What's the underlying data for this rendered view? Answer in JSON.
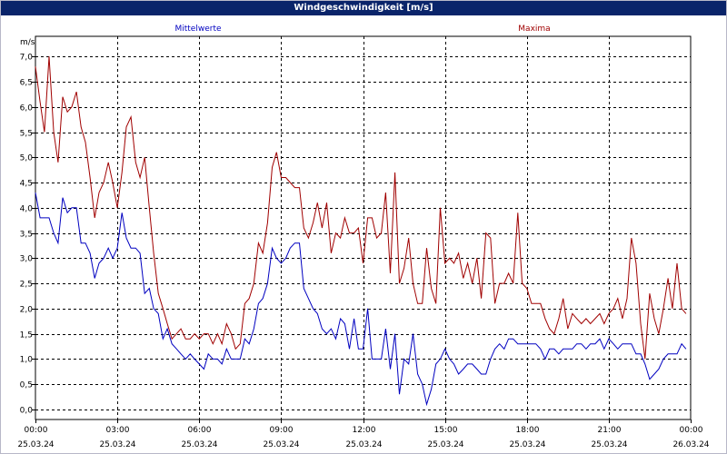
{
  "window": {
    "title": "Windgeschwindigkeit [m/s]"
  },
  "chart_data": {
    "type": "line",
    "title": "Windgeschwindigkeit [m/s]",
    "ylabel": "m/s",
    "xlabel": "",
    "ylim": [
      -0.2,
      7.4
    ],
    "xlim": [
      0,
      24
    ],
    "grid": true,
    "yticks": [
      {
        "value": 0.0,
        "label": "0,0"
      },
      {
        "value": 0.5,
        "label": "0,5"
      },
      {
        "value": 1.0,
        "label": "1,0"
      },
      {
        "value": 1.5,
        "label": "1,5"
      },
      {
        "value": 2.0,
        "label": "2,0"
      },
      {
        "value": 2.5,
        "label": "2,5"
      },
      {
        "value": 3.0,
        "label": "3,0"
      },
      {
        "value": 3.5,
        "label": "3,5"
      },
      {
        "value": 4.0,
        "label": "4,0"
      },
      {
        "value": 4.5,
        "label": "4,5"
      },
      {
        "value": 5.0,
        "label": "5,0"
      },
      {
        "value": 5.5,
        "label": "5,5"
      },
      {
        "value": 6.0,
        "label": "6,0"
      },
      {
        "value": 6.5,
        "label": "6,5"
      },
      {
        "value": 7.0,
        "label": "7,0"
      }
    ],
    "xticks": [
      {
        "value": 0,
        "time": "00:00",
        "date": "25.03.24"
      },
      {
        "value": 3,
        "time": "03:00",
        "date": "25.03.24"
      },
      {
        "value": 6,
        "time": "06:00",
        "date": "25.03.24"
      },
      {
        "value": 9,
        "time": "09:00",
        "date": "25.03.24"
      },
      {
        "value": 12,
        "time": "12:00",
        "date": "25.03.24"
      },
      {
        "value": 15,
        "time": "15:00",
        "date": "25.03.24"
      },
      {
        "value": 18,
        "time": "18:00",
        "date": "25.03.24"
      },
      {
        "value": 21,
        "time": "21:00",
        "date": "25.03.24"
      },
      {
        "value": 24,
        "time": "00:00",
        "date": "26.03.24"
      }
    ],
    "series": [
      {
        "name": "Mittelwerte",
        "color": "#0000c0",
        "points": [
          [
            0.0,
            4.3
          ],
          [
            0.17,
            3.8
          ],
          [
            0.33,
            3.8
          ],
          [
            0.5,
            3.8
          ],
          [
            0.67,
            3.5
          ],
          [
            0.83,
            3.3
          ],
          [
            1.0,
            4.2
          ],
          [
            1.17,
            3.9
          ],
          [
            1.33,
            4.0
          ],
          [
            1.5,
            4.0
          ],
          [
            1.67,
            3.3
          ],
          [
            1.83,
            3.3
          ],
          [
            2.0,
            3.1
          ],
          [
            2.17,
            2.6
          ],
          [
            2.33,
            2.9
          ],
          [
            2.5,
            3.0
          ],
          [
            2.67,
            3.2
          ],
          [
            2.83,
            3.0
          ],
          [
            3.0,
            3.2
          ],
          [
            3.17,
            3.9
          ],
          [
            3.33,
            3.4
          ],
          [
            3.5,
            3.2
          ],
          [
            3.67,
            3.2
          ],
          [
            3.83,
            3.1
          ],
          [
            4.0,
            2.3
          ],
          [
            4.17,
            2.4
          ],
          [
            4.33,
            2.0
          ],
          [
            4.5,
            1.9
          ],
          [
            4.67,
            1.4
          ],
          [
            4.83,
            1.6
          ],
          [
            5.0,
            1.3
          ],
          [
            5.17,
            1.2
          ],
          [
            5.33,
            1.1
          ],
          [
            5.5,
            1.0
          ],
          [
            5.67,
            1.1
          ],
          [
            5.83,
            1.0
          ],
          [
            6.0,
            0.9
          ],
          [
            6.17,
            0.8
          ],
          [
            6.33,
            1.1
          ],
          [
            6.5,
            1.0
          ],
          [
            6.67,
            1.0
          ],
          [
            6.83,
            0.9
          ],
          [
            7.0,
            1.2
          ],
          [
            7.17,
            1.0
          ],
          [
            7.33,
            1.0
          ],
          [
            7.5,
            1.0
          ],
          [
            7.67,
            1.4
          ],
          [
            7.83,
            1.3
          ],
          [
            8.0,
            1.6
          ],
          [
            8.17,
            2.1
          ],
          [
            8.33,
            2.2
          ],
          [
            8.5,
            2.5
          ],
          [
            8.67,
            3.2
          ],
          [
            8.83,
            3.0
          ],
          [
            9.0,
            2.9
          ],
          [
            9.17,
            3.0
          ],
          [
            9.33,
            3.2
          ],
          [
            9.5,
            3.3
          ],
          [
            9.67,
            3.3
          ],
          [
            9.83,
            2.4
          ],
          [
            10.0,
            2.2
          ],
          [
            10.17,
            2.0
          ],
          [
            10.33,
            1.9
          ],
          [
            10.5,
            1.6
          ],
          [
            10.67,
            1.5
          ],
          [
            10.83,
            1.6
          ],
          [
            11.0,
            1.4
          ],
          [
            11.17,
            1.8
          ],
          [
            11.33,
            1.7
          ],
          [
            11.5,
            1.2
          ],
          [
            11.67,
            1.8
          ],
          [
            11.83,
            1.2
          ],
          [
            12.0,
            1.2
          ],
          [
            12.17,
            2.0
          ],
          [
            12.33,
            1.0
          ],
          [
            12.5,
            1.0
          ],
          [
            12.67,
            1.0
          ],
          [
            12.83,
            1.6
          ],
          [
            13.0,
            0.8
          ],
          [
            13.17,
            1.5
          ],
          [
            13.33,
            0.3
          ],
          [
            13.5,
            1.0
          ],
          [
            13.67,
            0.9
          ],
          [
            13.83,
            1.5
          ],
          [
            14.0,
            0.7
          ],
          [
            14.17,
            0.5
          ],
          [
            14.33,
            0.1
          ],
          [
            14.5,
            0.4
          ],
          [
            14.67,
            0.9
          ],
          [
            14.83,
            1.0
          ],
          [
            15.0,
            1.2
          ],
          [
            15.17,
            1.0
          ],
          [
            15.33,
            0.9
          ],
          [
            15.5,
            0.7
          ],
          [
            15.67,
            0.8
          ],
          [
            15.83,
            0.9
          ],
          [
            16.0,
            0.9
          ],
          [
            16.17,
            0.8
          ],
          [
            16.33,
            0.7
          ],
          [
            16.5,
            0.7
          ],
          [
            16.67,
            1.0
          ],
          [
            16.83,
            1.2
          ],
          [
            17.0,
            1.3
          ],
          [
            17.17,
            1.2
          ],
          [
            17.33,
            1.4
          ],
          [
            17.5,
            1.4
          ],
          [
            17.67,
            1.3
          ],
          [
            17.83,
            1.3
          ],
          [
            18.0,
            1.3
          ],
          [
            18.17,
            1.3
          ],
          [
            18.33,
            1.3
          ],
          [
            18.5,
            1.2
          ],
          [
            18.67,
            1.0
          ],
          [
            18.83,
            1.2
          ],
          [
            19.0,
            1.2
          ],
          [
            19.17,
            1.1
          ],
          [
            19.33,
            1.2
          ],
          [
            19.5,
            1.2
          ],
          [
            19.67,
            1.2
          ],
          [
            19.83,
            1.3
          ],
          [
            20.0,
            1.3
          ],
          [
            20.17,
            1.2
          ],
          [
            20.33,
            1.3
          ],
          [
            20.5,
            1.3
          ],
          [
            20.67,
            1.4
          ],
          [
            20.83,
            1.2
          ],
          [
            21.0,
            1.4
          ],
          [
            21.17,
            1.3
          ],
          [
            21.33,
            1.2
          ],
          [
            21.5,
            1.3
          ],
          [
            21.67,
            1.3
          ],
          [
            21.83,
            1.3
          ],
          [
            22.0,
            1.1
          ],
          [
            22.17,
            1.1
          ],
          [
            22.33,
            0.9
          ],
          [
            22.5,
            0.6
          ],
          [
            22.67,
            0.7
          ],
          [
            22.83,
            0.8
          ],
          [
            23.0,
            1.0
          ],
          [
            23.17,
            1.1
          ],
          [
            23.33,
            1.1
          ],
          [
            23.5,
            1.1
          ],
          [
            23.67,
            1.3
          ],
          [
            23.83,
            1.2
          ]
        ]
      },
      {
        "name": "Maxima",
        "color": "#a00000",
        "points": [
          [
            0.0,
            6.8
          ],
          [
            0.17,
            6.1
          ],
          [
            0.33,
            5.5
          ],
          [
            0.5,
            7.0
          ],
          [
            0.67,
            5.5
          ],
          [
            0.83,
            4.9
          ],
          [
            1.0,
            6.2
          ],
          [
            1.17,
            5.9
          ],
          [
            1.33,
            6.0
          ],
          [
            1.5,
            6.3
          ],
          [
            1.67,
            5.6
          ],
          [
            1.83,
            5.3
          ],
          [
            2.0,
            4.6
          ],
          [
            2.17,
            3.8
          ],
          [
            2.33,
            4.3
          ],
          [
            2.5,
            4.5
          ],
          [
            2.67,
            4.9
          ],
          [
            2.83,
            4.5
          ],
          [
            3.0,
            4.0
          ],
          [
            3.17,
            4.7
          ],
          [
            3.33,
            5.6
          ],
          [
            3.5,
            5.8
          ],
          [
            3.67,
            4.9
          ],
          [
            3.83,
            4.6
          ],
          [
            4.0,
            5.0
          ],
          [
            4.17,
            4.0
          ],
          [
            4.33,
            3.1
          ],
          [
            4.5,
            2.3
          ],
          [
            4.67,
            2.0
          ],
          [
            4.83,
            1.7
          ],
          [
            5.0,
            1.4
          ],
          [
            5.17,
            1.5
          ],
          [
            5.33,
            1.6
          ],
          [
            5.5,
            1.4
          ],
          [
            5.67,
            1.4
          ],
          [
            5.83,
            1.5
          ],
          [
            6.0,
            1.4
          ],
          [
            6.17,
            1.5
          ],
          [
            6.33,
            1.5
          ],
          [
            6.5,
            1.3
          ],
          [
            6.67,
            1.5
          ],
          [
            6.83,
            1.3
          ],
          [
            7.0,
            1.7
          ],
          [
            7.17,
            1.5
          ],
          [
            7.33,
            1.2
          ],
          [
            7.5,
            1.3
          ],
          [
            7.67,
            2.1
          ],
          [
            7.83,
            2.2
          ],
          [
            8.0,
            2.5
          ],
          [
            8.17,
            3.3
          ],
          [
            8.33,
            3.1
          ],
          [
            8.5,
            3.7
          ],
          [
            8.67,
            4.8
          ],
          [
            8.83,
            5.1
          ],
          [
            9.0,
            4.6
          ],
          [
            9.17,
            4.6
          ],
          [
            9.33,
            4.5
          ],
          [
            9.5,
            4.4
          ],
          [
            9.67,
            4.4
          ],
          [
            9.83,
            3.6
          ],
          [
            10.0,
            3.4
          ],
          [
            10.17,
            3.7
          ],
          [
            10.33,
            4.1
          ],
          [
            10.5,
            3.6
          ],
          [
            10.67,
            4.1
          ],
          [
            10.83,
            3.1
          ],
          [
            11.0,
            3.5
          ],
          [
            11.17,
            3.4
          ],
          [
            11.33,
            3.8
          ],
          [
            11.5,
            3.5
          ],
          [
            11.67,
            3.5
          ],
          [
            11.83,
            3.6
          ],
          [
            12.0,
            2.9
          ],
          [
            12.17,
            3.8
          ],
          [
            12.33,
            3.8
          ],
          [
            12.5,
            3.4
          ],
          [
            12.67,
            3.5
          ],
          [
            12.83,
            4.3
          ],
          [
            13.0,
            2.7
          ],
          [
            13.17,
            4.7
          ],
          [
            13.33,
            2.5
          ],
          [
            13.5,
            2.8
          ],
          [
            13.67,
            3.4
          ],
          [
            13.83,
            2.5
          ],
          [
            14.0,
            2.1
          ],
          [
            14.17,
            2.1
          ],
          [
            14.33,
            3.2
          ],
          [
            14.5,
            2.4
          ],
          [
            14.67,
            2.1
          ],
          [
            14.83,
            4.0
          ],
          [
            15.0,
            2.9
          ],
          [
            15.17,
            3.0
          ],
          [
            15.33,
            2.9
          ],
          [
            15.5,
            3.1
          ],
          [
            15.67,
            2.6
          ],
          [
            15.83,
            2.9
          ],
          [
            16.0,
            2.5
          ],
          [
            16.17,
            3.0
          ],
          [
            16.33,
            2.2
          ],
          [
            16.5,
            3.5
          ],
          [
            16.67,
            3.4
          ],
          [
            16.83,
            2.1
          ],
          [
            17.0,
            2.5
          ],
          [
            17.17,
            2.5
          ],
          [
            17.33,
            2.7
          ],
          [
            17.5,
            2.5
          ],
          [
            17.67,
            3.9
          ],
          [
            17.83,
            2.5
          ],
          [
            18.0,
            2.4
          ],
          [
            18.17,
            2.1
          ],
          [
            18.33,
            2.1
          ],
          [
            18.5,
            2.1
          ],
          [
            18.67,
            1.8
          ],
          [
            18.83,
            1.6
          ],
          [
            19.0,
            1.5
          ],
          [
            19.17,
            1.8
          ],
          [
            19.33,
            2.2
          ],
          [
            19.5,
            1.6
          ],
          [
            19.67,
            1.9
          ],
          [
            19.83,
            1.8
          ],
          [
            20.0,
            1.7
          ],
          [
            20.17,
            1.8
          ],
          [
            20.33,
            1.7
          ],
          [
            20.5,
            1.8
          ],
          [
            20.67,
            1.9
          ],
          [
            20.83,
            1.7
          ],
          [
            21.0,
            1.9
          ],
          [
            21.17,
            2.0
          ],
          [
            21.33,
            2.2
          ],
          [
            21.5,
            1.8
          ],
          [
            21.67,
            2.2
          ],
          [
            21.83,
            3.4
          ],
          [
            22.0,
            2.9
          ],
          [
            22.17,
            1.7
          ],
          [
            22.33,
            1.0
          ],
          [
            22.5,
            2.3
          ],
          [
            22.67,
            1.8
          ],
          [
            22.83,
            1.5
          ],
          [
            23.0,
            2.0
          ],
          [
            23.17,
            2.6
          ],
          [
            23.33,
            2.0
          ],
          [
            23.5,
            2.9
          ],
          [
            23.67,
            2.0
          ],
          [
            23.83,
            1.9
          ]
        ]
      }
    ]
  }
}
